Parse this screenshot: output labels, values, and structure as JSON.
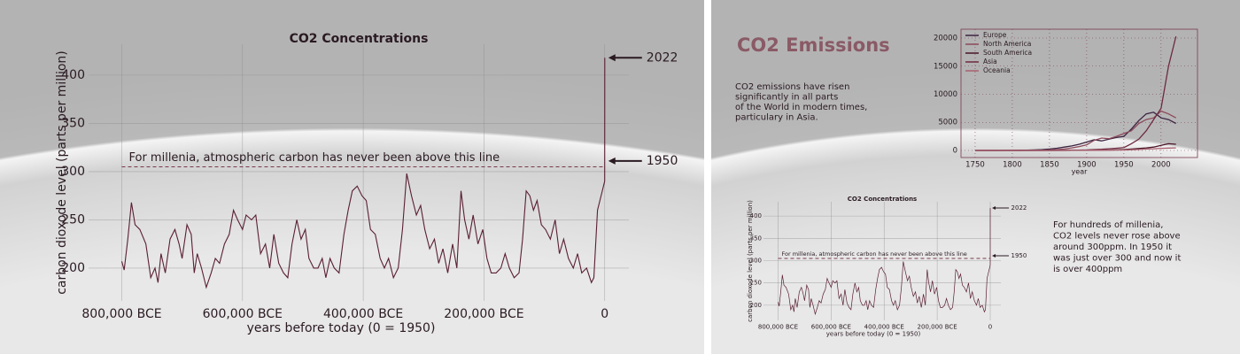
{
  "chart_data": [
    {
      "type": "line",
      "title": "CO2 Concentrations",
      "xlabel": "years before today (0 = 1950)",
      "ylabel": "carbon dioxode level (parts per million)",
      "x": [
        -800000,
        -796000,
        -790000,
        -784000,
        -778000,
        -770000,
        -760000,
        -752000,
        -745000,
        -740000,
        -735000,
        -728000,
        -720000,
        -712000,
        -705000,
        -700000,
        -692000,
        -685000,
        -680000,
        -675000,
        -668000,
        -660000,
        -652000,
        -645000,
        -638000,
        -630000,
        -622000,
        -615000,
        -608000,
        -600000,
        -594000,
        -585000,
        -578000,
        -570000,
        -562000,
        -555000,
        -548000,
        -540000,
        -532000,
        -525000,
        -518000,
        -510000,
        -503000,
        -496000,
        -490000,
        -482000,
        -475000,
        -468000,
        -462000,
        -455000,
        -448000,
        -440000,
        -432000,
        -425000,
        -418000,
        -410000,
        -402000,
        -395000,
        -388000,
        -380000,
        -372000,
        -365000,
        -358000,
        -350000,
        -342000,
        -335000,
        -328000,
        -320000,
        -312000,
        -305000,
        -298000,
        -290000,
        -282000,
        -275000,
        -268000,
        -260000,
        -252000,
        -245000,
        -238000,
        -232000,
        -225000,
        -218000,
        -210000,
        -202000,
        -195000,
        -188000,
        -180000,
        -172000,
        -165000,
        -158000,
        -150000,
        -142000,
        -136000,
        -130000,
        -124000,
        -118000,
        -112000,
        -105000,
        -98000,
        -90000,
        -82000,
        -75000,
        -68000,
        -60000,
        -52000,
        -45000,
        -38000,
        -30000,
        -22000,
        -18000,
        -12000,
        -8000,
        -4000,
        0,
        72
      ],
      "values": [
        207,
        198,
        230,
        268,
        245,
        240,
        225,
        190,
        200,
        185,
        215,
        195,
        230,
        240,
        225,
        210,
        245,
        235,
        195,
        215,
        200,
        180,
        195,
        210,
        205,
        225,
        235,
        260,
        250,
        240,
        255,
        250,
        255,
        215,
        225,
        200,
        235,
        205,
        195,
        190,
        225,
        250,
        230,
        240,
        210,
        200,
        200,
        210,
        190,
        210,
        200,
        195,
        235,
        260,
        280,
        285,
        275,
        270,
        240,
        235,
        210,
        200,
        210,
        190,
        200,
        240,
        298,
        275,
        255,
        265,
        240,
        220,
        230,
        205,
        220,
        195,
        225,
        200,
        280,
        250,
        230,
        255,
        225,
        240,
        210,
        195,
        195,
        200,
        215,
        200,
        190,
        195,
        230,
        280,
        275,
        260,
        270,
        245,
        240,
        230,
        250,
        215,
        230,
        210,
        200,
        215,
        195,
        200,
        185,
        190,
        260,
        270,
        280,
        290,
        418
      ],
      "color": "#5a1f33",
      "xlim": [
        -855000,
        40000
      ],
      "ylim": [
        166,
        432
      ],
      "xticks": [
        {
          "value": -800000,
          "label": "800,000 BCE"
        },
        {
          "value": -600000,
          "label": "600,000 BCE"
        },
        {
          "value": -400000,
          "label": "400,000 BCE"
        },
        {
          "value": -200000,
          "label": "200,000 BCE"
        },
        0
      ],
      "yticks": [
        200,
        250,
        300,
        350,
        400
      ],
      "grid": true,
      "threshold": {
        "value": 305,
        "text": "For millenia, atmospheric carbon has never been above this line"
      },
      "annotations": [
        {
          "text": "2022",
          "x": 72,
          "y": 418
        },
        {
          "text": "1950",
          "x": 0,
          "y": 311
        }
      ]
    },
    {
      "type": "line",
      "title": "CO2 Emissions",
      "xlabel": "year",
      "x": [
        1750,
        1760,
        1770,
        1780,
        1790,
        1800,
        1810,
        1820,
        1830,
        1840,
        1850,
        1860,
        1870,
        1880,
        1890,
        1900,
        1910,
        1920,
        1930,
        1940,
        1950,
        1960,
        1970,
        1980,
        1990,
        2000,
        2010,
        2020
      ],
      "xlim": [
        1731,
        2049
      ],
      "ylim": [
        -1260,
        21575
      ],
      "xticks": [
        1750,
        1800,
        1850,
        1900,
        1950,
        2000
      ],
      "yticks": [
        0,
        5000,
        10000,
        15000,
        20000
      ],
      "grid": true,
      "legend": "upper-left",
      "series": [
        {
          "name": "Europe",
          "color": "#3b2340",
          "values": [
            0,
            0,
            0,
            0,
            10,
            20,
            30,
            50,
            100,
            150,
            250,
            400,
            600,
            800,
            1100,
            1500,
            1900,
            1700,
            2000,
            2300,
            2500,
            3800,
            5300,
            6500,
            6800,
            5800,
            5500,
            4800
          ]
        },
        {
          "name": "North America",
          "color": "#8b4a5a",
          "values": [
            0,
            0,
            0,
            0,
            0,
            0,
            5,
            10,
            20,
            40,
            80,
            150,
            250,
            450,
            700,
            1000,
            1800,
            2200,
            2100,
            2500,
            3000,
            3500,
            4800,
            5500,
            5800,
            7000,
            6500,
            5800
          ]
        },
        {
          "name": "South America",
          "color": "#4a1526",
          "values": [
            0,
            0,
            0,
            0,
            0,
            0,
            0,
            0,
            0,
            0,
            0,
            0,
            5,
            10,
            15,
            20,
            40,
            60,
            80,
            110,
            150,
            250,
            350,
            450,
            600,
            900,
            1200,
            1100
          ]
        },
        {
          "name": "Asia",
          "color": "#6e2a40",
          "values": [
            0,
            0,
            0,
            0,
            0,
            0,
            0,
            0,
            0,
            0,
            5,
            10,
            20,
            40,
            60,
            100,
            150,
            200,
            300,
            400,
            500,
            1200,
            2000,
            3500,
            5500,
            7500,
            15000,
            20300
          ]
        },
        {
          "name": "Oceania",
          "color": "#a8606f",
          "values": [
            0,
            0,
            0,
            0,
            0,
            0,
            0,
            0,
            0,
            0,
            0,
            0,
            5,
            10,
            15,
            20,
            30,
            40,
            50,
            60,
            80,
            120,
            180,
            250,
            300,
            380,
            420,
            450
          ]
        }
      ]
    }
  ],
  "notes": {
    "emissions": [
      "CO2 emissions have risen",
      "significantly in all parts",
      "of the World in modern times,",
      "particulary in Asia."
    ],
    "concentrations": [
      "For hundreds of millenia,",
      "CO2 levels never rose above",
      "around 300ppm. In 1950 it",
      "was just over 300 and now it",
      "is over 400ppm"
    ]
  }
}
